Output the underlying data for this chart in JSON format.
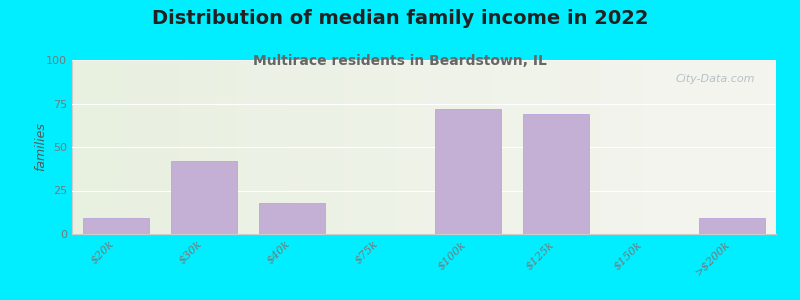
{
  "title": "Distribution of median family income in 2022",
  "subtitle": "Multirace residents in Beardstown, IL",
  "categories": [
    "$20k",
    "$30k",
    "$40k",
    "$75k",
    "$100k",
    "$125k",
    "$150k",
    ">$200k"
  ],
  "values": [
    9,
    42,
    18,
    0,
    72,
    69,
    0,
    9
  ],
  "bar_color": "#c5b0d5",
  "bar_edge_color": "#b39ddb",
  "ylabel": "families",
  "ylim": [
    0,
    100
  ],
  "yticks": [
    0,
    25,
    50,
    75,
    100
  ],
  "background_outer": "#00eeff",
  "bg_left_color": "#e8f0e0",
  "bg_right_color": "#f5f5f0",
  "title_fontsize": 14,
  "subtitle_fontsize": 10,
  "subtitle_color": "#666666",
  "title_color": "#222222",
  "watermark_text": "City-Data.com",
  "watermark_color": "#aab8c2",
  "tick_color": "#777777",
  "ylabel_color": "#555555"
}
